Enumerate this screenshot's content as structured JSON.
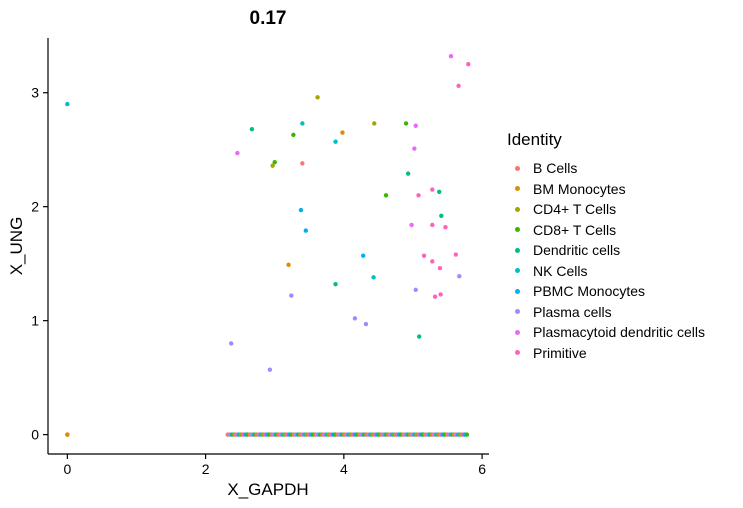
{
  "chart_data": {
    "type": "scatter",
    "title": "0.17",
    "xlabel": "X_GAPDH",
    "ylabel": "X_UNG",
    "xlim": [
      -0.28,
      6.1
    ],
    "ylim": [
      -0.17,
      3.48
    ],
    "xticks": [
      0,
      2,
      4,
      6
    ],
    "yticks": [
      0,
      1,
      2,
      3
    ],
    "grid": false,
    "legend": {
      "title": "Identity",
      "position": "right",
      "items": [
        {
          "name": "B Cells",
          "color": "#F8766D"
        },
        {
          "name": "BM Monocytes",
          "color": "#D89000"
        },
        {
          "name": "CD4+ T Cells",
          "color": "#A3A500"
        },
        {
          "name": "CD8+ T Cells",
          "color": "#39B600"
        },
        {
          "name": "Dendritic cells",
          "color": "#00BF7D"
        },
        {
          "name": "NK Cells",
          "color": "#00BFC4"
        },
        {
          "name": "PBMC Monocytes",
          "color": "#00B0F6"
        },
        {
          "name": "Plasma cells",
          "color": "#9590FF"
        },
        {
          "name": "Plasmacytoid dendritic cells",
          "color": "#E76BF3"
        },
        {
          "name": "Primitive",
          "color": "#FF62BC"
        }
      ]
    },
    "points": [
      {
        "x": 0.0,
        "y": 2.9,
        "series": "NK Cells"
      },
      {
        "x": 0.0,
        "y": 0.0,
        "series": "CD4+ T Cells"
      },
      {
        "x": 0.0,
        "y": 0.0,
        "series": "BM Monocytes"
      },
      {
        "x": 5.55,
        "y": 3.32,
        "series": "Plasmacytoid dendritic cells"
      },
      {
        "x": 5.8,
        "y": 3.25,
        "series": "Primitive"
      },
      {
        "x": 5.66,
        "y": 3.06,
        "series": "Primitive"
      },
      {
        "x": 3.62,
        "y": 2.96,
        "series": "CD4+ T Cells"
      },
      {
        "x": 3.4,
        "y": 2.73,
        "series": "NK Cells"
      },
      {
        "x": 4.44,
        "y": 2.73,
        "series": "CD4+ T Cells"
      },
      {
        "x": 4.9,
        "y": 2.73,
        "series": "CD8+ T Cells"
      },
      {
        "x": 5.04,
        "y": 2.71,
        "series": "Plasmacytoid dendritic cells"
      },
      {
        "x": 2.67,
        "y": 2.68,
        "series": "Dendritic cells"
      },
      {
        "x": 3.98,
        "y": 2.65,
        "series": "BM Monocytes"
      },
      {
        "x": 3.27,
        "y": 2.63,
        "series": "CD8+ T Cells"
      },
      {
        "x": 3.88,
        "y": 2.57,
        "series": "NK Cells"
      },
      {
        "x": 5.02,
        "y": 2.51,
        "series": "Plasmacytoid dendritic cells"
      },
      {
        "x": 2.46,
        "y": 2.47,
        "series": "Plasmacytoid dendritic cells"
      },
      {
        "x": 3.0,
        "y": 2.39,
        "series": "CD8+ T Cells"
      },
      {
        "x": 3.4,
        "y": 2.38,
        "series": "B Cells"
      },
      {
        "x": 2.97,
        "y": 2.36,
        "series": "CD4+ T Cells"
      },
      {
        "x": 4.93,
        "y": 2.29,
        "series": "Dendritic cells"
      },
      {
        "x": 5.28,
        "y": 2.15,
        "series": "Primitive"
      },
      {
        "x": 5.38,
        "y": 2.13,
        "series": "Dendritic cells"
      },
      {
        "x": 4.61,
        "y": 2.1,
        "series": "CD8+ T Cells"
      },
      {
        "x": 5.08,
        "y": 2.1,
        "series": "Primitive"
      },
      {
        "x": 3.38,
        "y": 1.97,
        "series": "PBMC Monocytes"
      },
      {
        "x": 5.41,
        "y": 1.92,
        "series": "Dendritic cells"
      },
      {
        "x": 5.28,
        "y": 1.84,
        "series": "Primitive"
      },
      {
        "x": 4.98,
        "y": 1.84,
        "series": "Plasmacytoid dendritic cells"
      },
      {
        "x": 5.47,
        "y": 1.82,
        "series": "Primitive"
      },
      {
        "x": 3.45,
        "y": 1.79,
        "series": "PBMC Monocytes"
      },
      {
        "x": 4.28,
        "y": 1.57,
        "series": "PBMC Monocytes"
      },
      {
        "x": 5.16,
        "y": 1.57,
        "series": "Primitive"
      },
      {
        "x": 5.62,
        "y": 1.58,
        "series": "Primitive"
      },
      {
        "x": 5.28,
        "y": 1.52,
        "series": "Primitive"
      },
      {
        "x": 3.2,
        "y": 1.49,
        "series": "BM Monocytes"
      },
      {
        "x": 5.39,
        "y": 1.46,
        "series": "Primitive"
      },
      {
        "x": 5.67,
        "y": 1.39,
        "series": "Plasma cells"
      },
      {
        "x": 4.43,
        "y": 1.38,
        "series": "NK Cells"
      },
      {
        "x": 3.88,
        "y": 1.32,
        "series": "Dendritic cells"
      },
      {
        "x": 5.04,
        "y": 1.27,
        "series": "Plasma cells"
      },
      {
        "x": 5.4,
        "y": 1.23,
        "series": "Primitive"
      },
      {
        "x": 3.24,
        "y": 1.22,
        "series": "Plasma cells"
      },
      {
        "x": 5.32,
        "y": 1.21,
        "series": "Primitive"
      },
      {
        "x": 4.16,
        "y": 1.02,
        "series": "Plasma cells"
      },
      {
        "x": 4.32,
        "y": 0.97,
        "series": "Plasma cells"
      },
      {
        "x": 5.09,
        "y": 0.86,
        "series": "Dendritic cells"
      },
      {
        "x": 2.37,
        "y": 0.8,
        "series": "Plasma cells"
      },
      {
        "x": 2.93,
        "y": 0.57,
        "series": "Plasma cells"
      }
    ],
    "baseline_points": {
      "y": 0,
      "x_range": [
        2.32,
        5.78
      ],
      "series_order": [
        "B Cells",
        "BM Monocytes",
        "CD4+ T Cells",
        "CD8+ T Cells",
        "Dendritic cells",
        "NK Cells",
        "PBMC Monocytes",
        "Plasma cells",
        "Plasmacytoid dendritic cells",
        "Primitive"
      ]
    }
  }
}
